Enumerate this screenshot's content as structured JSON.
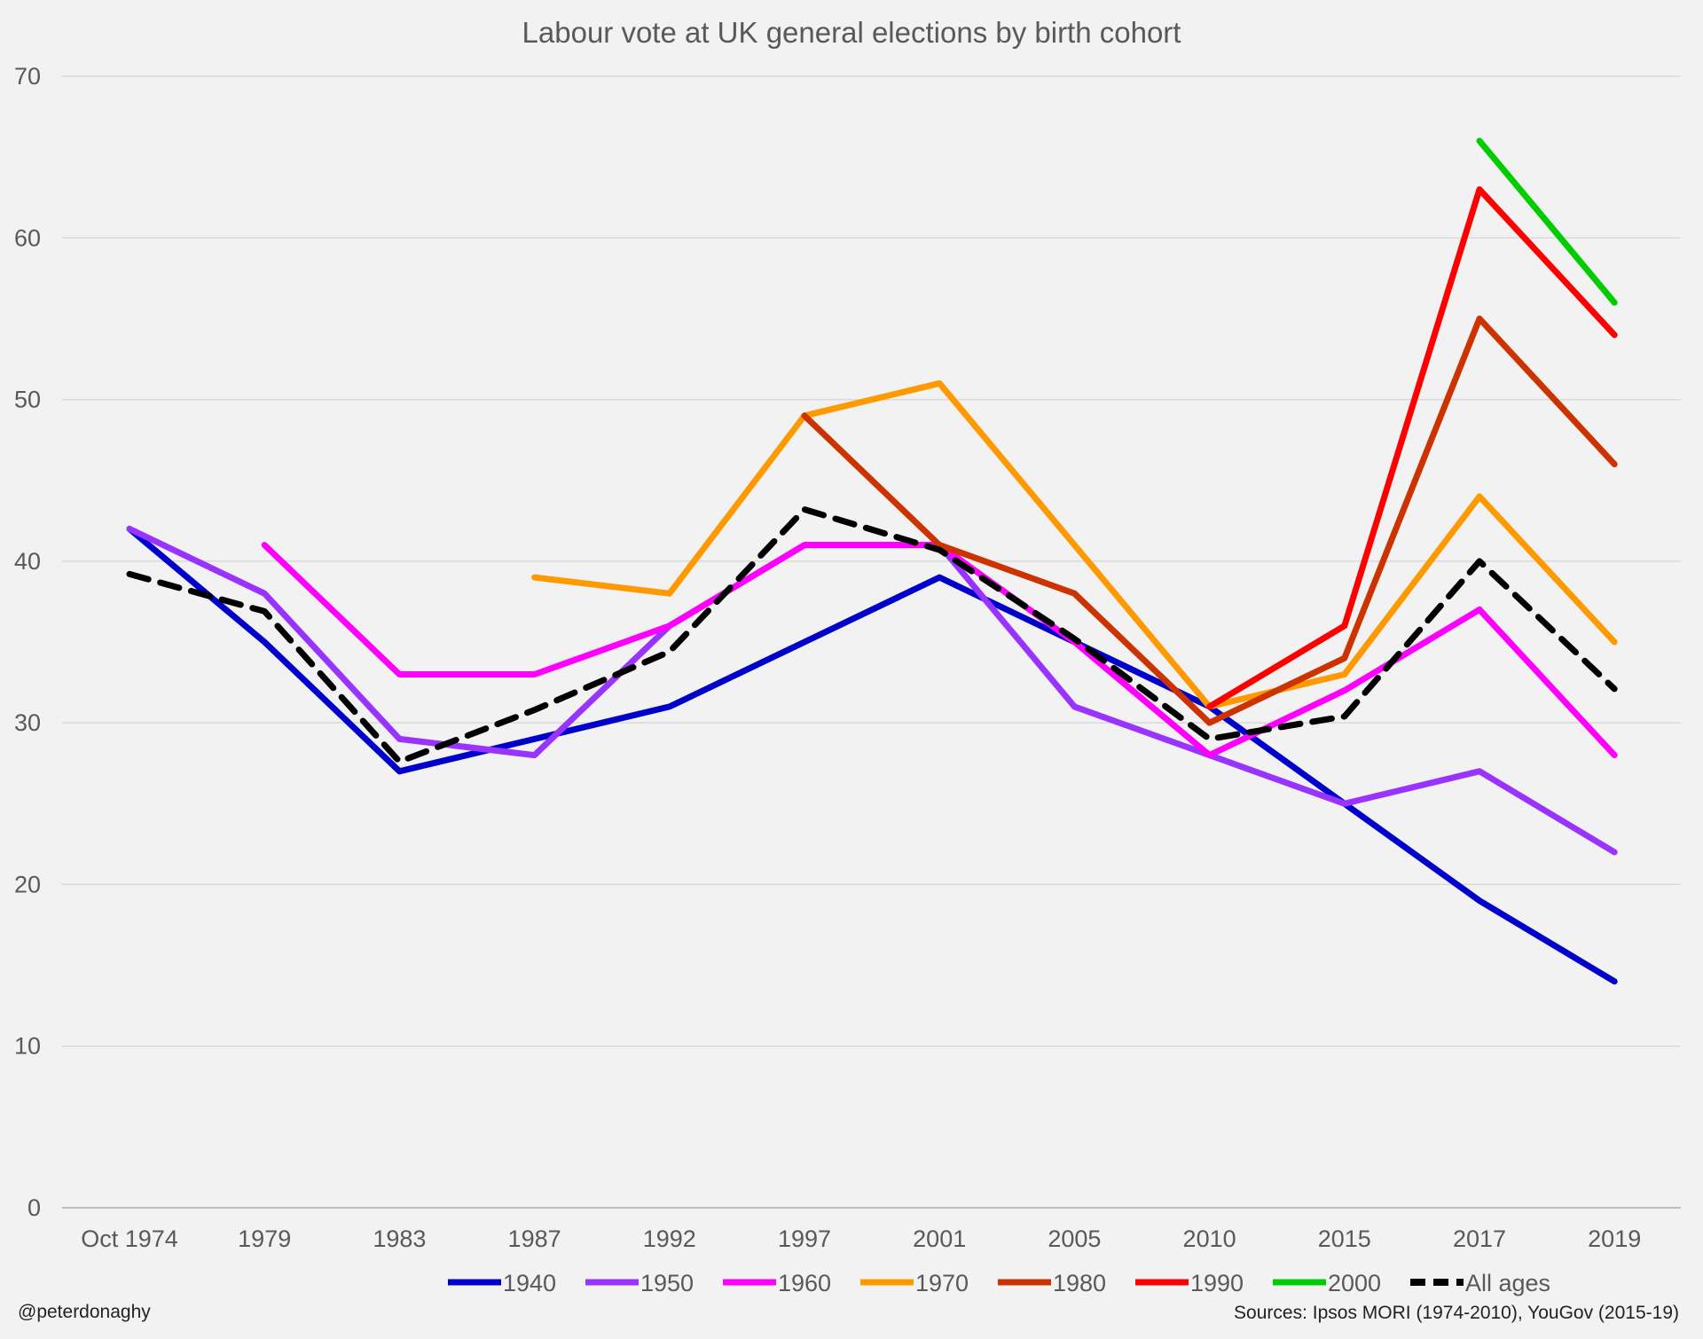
{
  "chart_data": {
    "type": "line",
    "title": "Labour vote at UK general elections by birth cohort",
    "xlabel": "",
    "ylabel": "",
    "categories": [
      "Oct 1974",
      "1979",
      "1983",
      "1987",
      "1992",
      "1997",
      "2001",
      "2005",
      "2010",
      "2015",
      "2017",
      "2019"
    ],
    "ylim": [
      0,
      70
    ],
    "yticks": [
      0,
      10,
      20,
      30,
      40,
      50,
      60,
      70
    ],
    "grid": true,
    "legend_position": "bottom",
    "series": [
      {
        "name": "1940",
        "color": "#0000cc",
        "dash": false,
        "values": [
          42,
          35,
          27,
          29,
          31,
          35,
          39,
          35,
          31,
          25,
          19,
          14
        ]
      },
      {
        "name": "1950",
        "color": "#9933ff",
        "dash": false,
        "values": [
          42,
          38,
          29,
          28,
          36,
          41,
          41,
          31,
          28,
          25,
          27,
          22
        ]
      },
      {
        "name": "1960",
        "color": "#ff00ff",
        "dash": false,
        "values": [
          null,
          41,
          33,
          33,
          36,
          41,
          41,
          35,
          28,
          32,
          37,
          28
        ]
      },
      {
        "name": "1970",
        "color": "#ff9900",
        "dash": false,
        "values": [
          null,
          null,
          null,
          39,
          38,
          49,
          51,
          41,
          31,
          33,
          44,
          35
        ]
      },
      {
        "name": "1980",
        "color": "#cc3300",
        "dash": false,
        "values": [
          null,
          null,
          null,
          null,
          null,
          49,
          41,
          38,
          30,
          34,
          55,
          46
        ]
      },
      {
        "name": "1990",
        "color": "#ff0000",
        "dash": false,
        "values": [
          null,
          null,
          null,
          null,
          null,
          null,
          null,
          null,
          31,
          36,
          63,
          54
        ]
      },
      {
        "name": "2000",
        "color": "#00cc00",
        "dash": false,
        "values": [
          null,
          null,
          null,
          null,
          null,
          null,
          null,
          null,
          null,
          null,
          66,
          56
        ]
      },
      {
        "name": "All ages",
        "color": "#000000",
        "dash": true,
        "values": [
          39.2,
          36.9,
          27.6,
          30.8,
          34.4,
          43.2,
          40.7,
          35.2,
          29,
          30.4,
          40,
          32.1
        ]
      }
    ]
  },
  "footer": {
    "credit": "@peterdonaghy",
    "sources": "Sources: Ipsos MORI (1974-2010), YouGov (2015-19)"
  }
}
